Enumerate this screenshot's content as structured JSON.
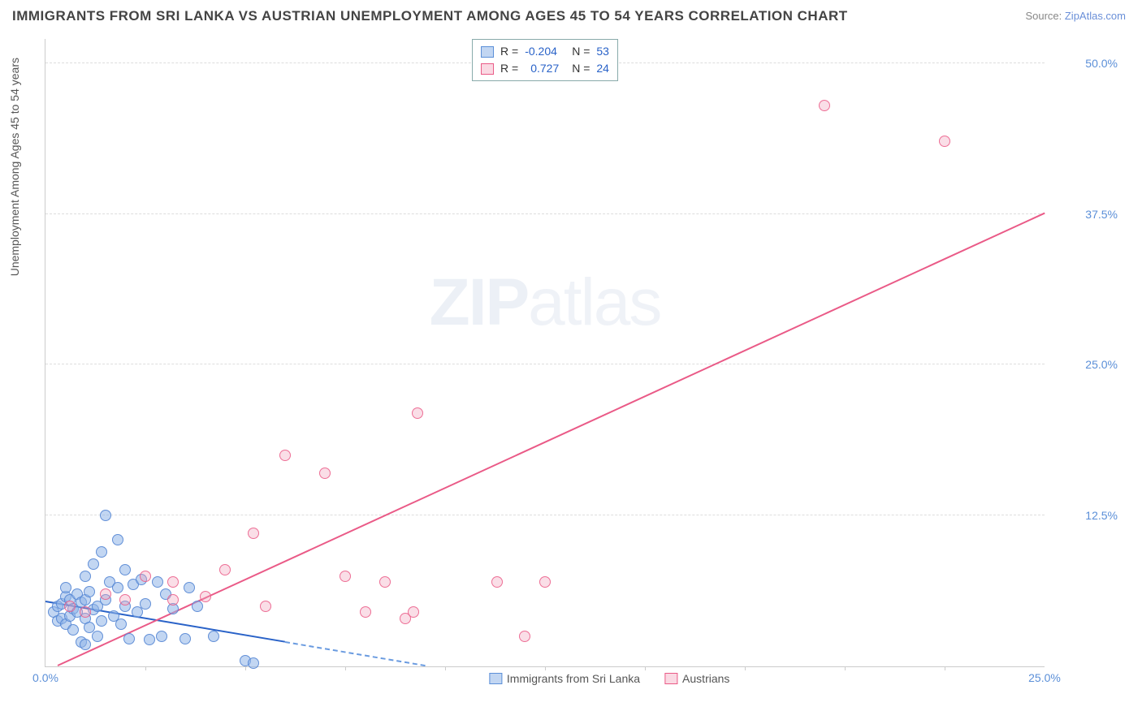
{
  "title": "IMMIGRANTS FROM SRI LANKA VS AUSTRIAN UNEMPLOYMENT AMONG AGES 45 TO 54 YEARS CORRELATION CHART",
  "source_prefix": "Source: ",
  "source_link": "ZipAtlas.com",
  "ylabel": "Unemployment Among Ages 45 to 54 years",
  "watermark_bold": "ZIP",
  "watermark_light": "atlas",
  "chart": {
    "type": "scatter",
    "xlim": [
      0,
      25
    ],
    "ylim": [
      0,
      52
    ],
    "yticks": [
      {
        "v": 12.5,
        "label": "12.5%"
      },
      {
        "v": 25.0,
        "label": "25.0%"
      },
      {
        "v": 37.5,
        "label": "37.5%"
      },
      {
        "v": 50.0,
        "label": "50.0%"
      }
    ],
    "xticks": [
      {
        "v": 0,
        "label": "0.0%"
      },
      {
        "v": 25,
        "label": "25.0%"
      }
    ],
    "xticks_minor": [
      2.5,
      5,
      7.5,
      10,
      12.5,
      15,
      17.5,
      20,
      22.5
    ],
    "background_color": "#ffffff",
    "grid_color": "#dddddd",
    "series": [
      {
        "name": "Immigrants from Sri Lanka",
        "color_fill": "rgba(144,180,232,0.55)",
        "color_stroke": "#5b8fd8",
        "R": "-0.204",
        "N": "53",
        "trend": {
          "x1": 0,
          "y1": 5.3,
          "x2": 9.5,
          "y2": 0,
          "color": "#2962c8",
          "solid_until_x": 6.0
        },
        "points": [
          [
            0.2,
            4.5
          ],
          [
            0.3,
            5.0
          ],
          [
            0.3,
            3.8
          ],
          [
            0.4,
            5.2
          ],
          [
            0.4,
            4.0
          ],
          [
            0.5,
            5.8
          ],
          [
            0.5,
            3.5
          ],
          [
            0.5,
            6.5
          ],
          [
            0.6,
            4.2
          ],
          [
            0.6,
            5.5
          ],
          [
            0.7,
            4.8
          ],
          [
            0.7,
            3.0
          ],
          [
            0.8,
            6.0
          ],
          [
            0.8,
            4.5
          ],
          [
            0.9,
            5.3
          ],
          [
            0.9,
            2.0
          ],
          [
            1.0,
            7.5
          ],
          [
            1.0,
            4.0
          ],
          [
            1.0,
            5.5
          ],
          [
            1.1,
            3.2
          ],
          [
            1.1,
            6.2
          ],
          [
            1.2,
            4.7
          ],
          [
            1.2,
            8.5
          ],
          [
            1.3,
            2.5
          ],
          [
            1.3,
            5.0
          ],
          [
            1.4,
            9.5
          ],
          [
            1.4,
            3.8
          ],
          [
            1.5,
            12.5
          ],
          [
            1.5,
            5.5
          ],
          [
            1.6,
            7.0
          ],
          [
            1.7,
            4.2
          ],
          [
            1.8,
            6.5
          ],
          [
            1.8,
            10.5
          ],
          [
            1.9,
            3.5
          ],
          [
            2.0,
            5.0
          ],
          [
            2.0,
            8.0
          ],
          [
            2.1,
            2.3
          ],
          [
            2.2,
            6.8
          ],
          [
            2.3,
            4.5
          ],
          [
            2.4,
            7.2
          ],
          [
            2.5,
            5.2
          ],
          [
            2.6,
            2.2
          ],
          [
            2.8,
            7.0
          ],
          [
            2.9,
            2.5
          ],
          [
            3.0,
            6.0
          ],
          [
            3.2,
            4.8
          ],
          [
            3.5,
            2.3
          ],
          [
            3.6,
            6.5
          ],
          [
            3.8,
            5.0
          ],
          [
            4.2,
            2.5
          ],
          [
            5.0,
            0.5
          ],
          [
            5.2,
            0.3
          ],
          [
            1.0,
            1.8
          ]
        ]
      },
      {
        "name": "Austrians",
        "color_fill": "rgba(242,160,185,0.4)",
        "color_stroke": "#ea5a87",
        "R": "0.727",
        "N": "24",
        "trend": {
          "x1": 0.3,
          "y1": 0,
          "x2": 25,
          "y2": 37.5,
          "color": "#ea5a87"
        },
        "points": [
          [
            0.6,
            5.0
          ],
          [
            1.0,
            4.5
          ],
          [
            1.5,
            6.0
          ],
          [
            2.0,
            5.5
          ],
          [
            2.5,
            7.5
          ],
          [
            3.2,
            7.0
          ],
          [
            3.2,
            5.5
          ],
          [
            4.0,
            5.8
          ],
          [
            4.5,
            8.0
          ],
          [
            5.2,
            11.0
          ],
          [
            5.5,
            5.0
          ],
          [
            6.0,
            17.5
          ],
          [
            7.0,
            16.0
          ],
          [
            7.5,
            7.5
          ],
          [
            8.0,
            4.5
          ],
          [
            8.5,
            7.0
          ],
          [
            9.0,
            4.0
          ],
          [
            9.2,
            4.5
          ],
          [
            9.3,
            21.0
          ],
          [
            11.3,
            7.0
          ],
          [
            12.0,
            2.5
          ],
          [
            12.5,
            7.0
          ],
          [
            19.5,
            46.5
          ],
          [
            22.5,
            43.5
          ]
        ]
      }
    ]
  },
  "legend_top": {
    "rows": [
      {
        "swatch": "blue",
        "r_label": "R =",
        "r_val": "-0.204",
        "n_label": "N =",
        "n_val": "53"
      },
      {
        "swatch": "pink",
        "r_label": "R =",
        "r_val": "0.727",
        "n_label": "N =",
        "n_val": "24"
      }
    ]
  },
  "legend_bottom": [
    {
      "swatch": "blue",
      "label": "Immigrants from Sri Lanka"
    },
    {
      "swatch": "pink",
      "label": "Austrians"
    }
  ]
}
